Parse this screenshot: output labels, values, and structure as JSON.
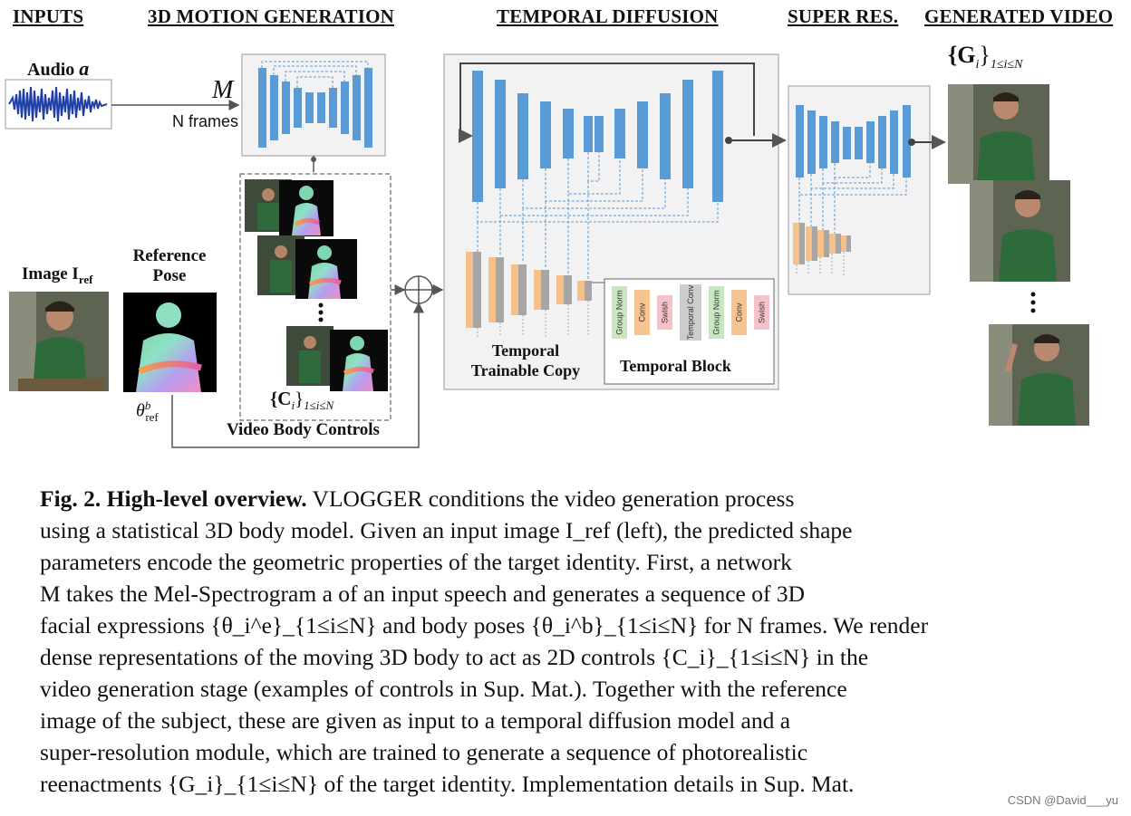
{
  "headers": {
    "inputs": "INPUTS",
    "motion": "3D MOTION GENERATION",
    "diffusion": "TEMPORAL DIFFUSION",
    "super": "SUPER RES.",
    "generated": "GENERATED VIDEO"
  },
  "labels": {
    "audio": "Audio",
    "audio_sym": "a",
    "m_label": "M",
    "n_frames": "N frames",
    "image_ref": "Image I",
    "image_ref_sub": "ref",
    "reference_pose_1": "Reference",
    "reference_pose_2": "Pose",
    "theta_ref": "θ",
    "theta_sup": "b",
    "theta_sub": "ref",
    "controls_set": "{C",
    "controls_set_sub": "i",
    "controls_set_range": "1≤i≤N",
    "video_body_controls": "Video Body Controls",
    "temporal_copy_1": "Temporal",
    "temporal_copy_2": "Trainable Copy",
    "temporal_block": "Temporal Block",
    "generated_set": "{G",
    "generated_set_sub": "i",
    "generated_set_range": "1≤i≤N"
  },
  "temporal_block_layers": [
    "Group Norm",
    "Conv",
    "Swish",
    "Temporal Conv",
    "Group Norm",
    "Conv",
    "Swish"
  ],
  "colors": {
    "unet_blue": "#5b9bd5",
    "copy_orange": "#f5c08a",
    "copy_gray": "#a6a6a6",
    "group_norm": "#c8e6c0",
    "conv": "#f7c48f",
    "swish": "#f4c2c8",
    "temporal_conv": "#cccccc"
  },
  "caption": {
    "fig_label": "Fig. 2.",
    "fig_title": "High-level overview.",
    "lines": [
      "VLOGGER conditions the video generation process",
      "using a statistical 3D body model. Given an input image I_ref (left), the predicted shape",
      "parameters encode the geometric properties of the target identity. First, a network",
      "M takes the Mel-Spectrogram a of an input speech and generates a sequence of 3D",
      "facial expressions {θ_i^e}_{1≤i≤N} and body poses {θ_i^b}_{1≤i≤N} for N frames. We render",
      "dense representations of the moving 3D body to act as 2D controls {C_i}_{1≤i≤N} in the",
      "video generation stage (examples of controls in Sup. Mat.). Together with the reference",
      "image of the subject, these are given as input to a temporal diffusion model and a",
      "super-resolution module, which are trained to generate a sequence of photorealistic",
      "reenactments {G_i}_{1≤i≤N} of the target identity. Implementation details in Sup. Mat."
    ]
  },
  "watermark": "CSDN @David___yu"
}
